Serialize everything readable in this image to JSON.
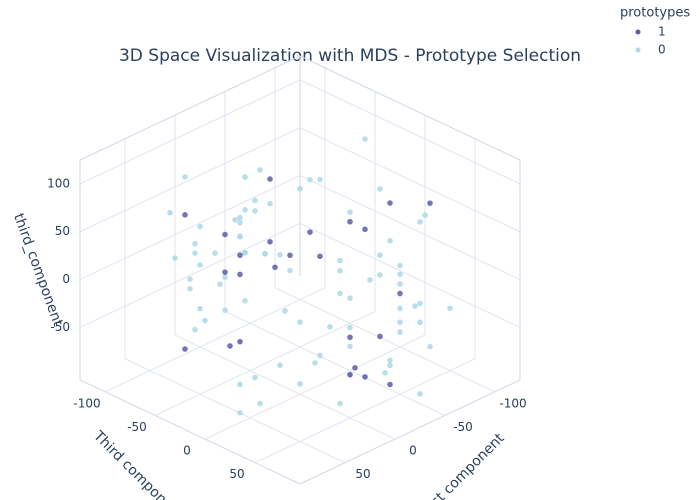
{
  "chart_data": {
    "type": "scatter3d",
    "title": "3D Space Visualization with MDS - Prototype Selection",
    "x_label": "First component",
    "y_label": "Third component",
    "z_label": "third_component",
    "legend_title": "prototypes",
    "legend": "top-right",
    "grid": true,
    "xlim": [
      -125,
      95
    ],
    "ylim": [
      -125,
      95
    ],
    "zlim": [
      -105,
      125
    ],
    "xticks": [
      -100,
      -50,
      0,
      50
    ],
    "yticks": [
      -100,
      -50,
      0,
      50
    ],
    "zticks": [
      -50,
      0,
      50,
      100
    ],
    "series": [
      {
        "name": "1",
        "color": "#5c5da5",
        "x": [
          -60,
          20,
          -30,
          50,
          -80,
          0,
          35,
          -45,
          70,
          -15,
          -90,
          10,
          45,
          -70,
          25,
          -5,
          60,
          -40,
          -20,
          30,
          -55,
          15,
          55,
          -35,
          5
        ],
        "y": [
          30,
          -40,
          70,
          -10,
          -60,
          50,
          -80,
          20,
          0,
          -90,
          40,
          60,
          -30,
          -20,
          15,
          75,
          -55,
          -70,
          35,
          5,
          -45,
          80,
          -5,
          55,
          -25
        ],
        "z": [
          80,
          -60,
          20,
          40,
          -30,
          100,
          -80,
          55,
          -20,
          10,
          70,
          -50,
          30,
          -90,
          60,
          -10,
          85,
          0,
          -70,
          45,
          15,
          -40,
          65,
          -85,
          110
        ]
      },
      {
        "name": "0",
        "color": "#add8e6",
        "x": [
          -85,
          -60,
          -40,
          -20,
          5,
          30,
          55,
          70,
          -95,
          -70,
          -50,
          -30,
          -10,
          15,
          40,
          60,
          -80,
          -55,
          -35,
          -15,
          10,
          35,
          50,
          65,
          -90,
          -65,
          -45,
          -25,
          0,
          25,
          45,
          75,
          -75,
          -50,
          -20,
          20,
          50,
          -100,
          -5,
          60,
          -30,
          40,
          -60,
          10,
          70,
          -80,
          30,
          -40,
          55,
          -10,
          -70,
          25,
          -90,
          45,
          0,
          -55,
          65,
          -25,
          15,
          -45,
          35,
          -85,
          5,
          -65,
          50,
          -15,
          75,
          -35,
          20,
          -95,
          40,
          -50,
          60,
          -20,
          10,
          -75,
          30,
          -5,
          55,
          -40
        ],
        "y": [
          40,
          -70,
          60,
          -20,
          -90,
          30,
          -50,
          10,
          -30,
          50,
          -80,
          20,
          70,
          -60,
          0,
          -40,
          -10,
          65,
          -95,
          35,
          -55,
          15,
          -75,
          45,
          25,
          -45,
          75,
          -65,
          -100,
          55,
          -15,
          -35,
          5,
          -85,
          80,
          -25,
          -5,
          -60,
          45,
          60,
          70,
          -90,
          -10,
          50,
          -30,
          20,
          -50,
          80,
          0,
          -70,
          30,
          -20,
          60,
          -60,
          40,
          -100,
          10,
          -40,
          65,
          -80,
          -25,
          45,
          -55,
          15,
          -5,
          75,
          -35,
          55,
          -95,
          5,
          -45,
          35,
          -15,
          -75,
          25,
          -65,
          50,
          85,
          -50,
          0
        ],
        "z": [
          60,
          -40,
          20,
          90,
          -70,
          0,
          45,
          -85,
          100,
          -20,
          30,
          -60,
          70,
          -5,
          -95,
          40,
          -30,
          80,
          10,
          -75,
          55,
          -50,
          25,
          95,
          -45,
          65,
          -15,
          85,
          -65,
          5,
          -80,
          35,
          75,
          -25,
          50,
          -90,
          15,
          -55,
          105,
          -35,
          -10,
          60,
          -70,
          30,
          90,
          -45,
          0,
          -85,
          70,
          20,
          -60,
          100,
          -30,
          45,
          -95,
          10,
          80,
          -50,
          35,
          -20,
          65,
          -75,
          55,
          -5,
          110,
          -40,
          25,
          -65,
          85,
          -15,
          40,
          -90,
          5,
          75,
          -55,
          50,
          -25,
          95,
          -35,
          15
        ]
      }
    ]
  }
}
